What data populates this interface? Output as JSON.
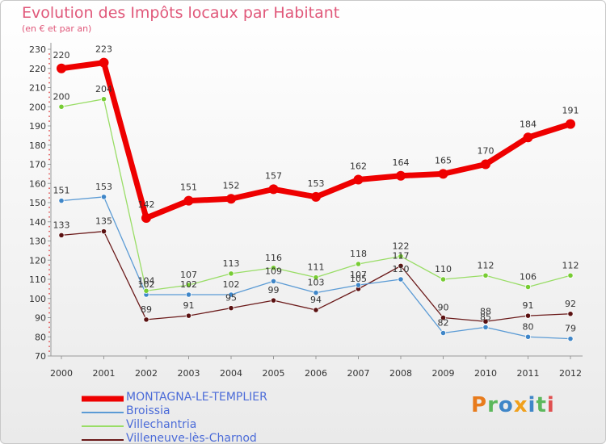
{
  "chart_data": {
    "type": "line",
    "title": "Evolution des Impôts locaux par Habitant",
    "subtitle": "(en € et par an)",
    "categories": [
      "2000",
      "2001",
      "2002",
      "2003",
      "2004",
      "2005",
      "2006",
      "2007",
      "2008",
      "2009",
      "2010",
      "2011",
      "2012"
    ],
    "yticks": [
      70,
      80,
      90,
      100,
      110,
      120,
      130,
      140,
      150,
      160,
      170,
      180,
      190,
      200,
      210,
      220,
      230
    ],
    "ylim": [
      70,
      230
    ],
    "grid": false,
    "series": [
      {
        "name": "MONTAGNA-LE-TEMPLIER",
        "color": "#ee0000",
        "point_color": "#ee0000",
        "values": [
          220,
          223,
          142,
          151,
          152,
          157,
          153,
          162,
          164,
          165,
          170,
          184,
          191
        ]
      },
      {
        "name": "Broissia",
        "color": "#5b9bd5",
        "point_color": "#3f86c8",
        "values": [
          151,
          153,
          102,
          102,
          102,
          109,
          103,
          107,
          110,
          82,
          85,
          80,
          79
        ]
      },
      {
        "name": "Villechantria",
        "color": "#99dd66",
        "point_color": "#77cc33",
        "values": [
          200,
          204,
          104,
          107,
          113,
          116,
          111,
          118,
          122,
          110,
          112,
          106,
          112
        ]
      },
      {
        "name": "Villeneuve-lès-Charnod",
        "color": "#6b1a1a",
        "point_color": "#5a1010",
        "values": [
          133,
          135,
          89,
          91,
          95,
          99,
          94,
          105,
          117,
          90,
          88,
          91,
          92
        ]
      }
    ]
  },
  "logo": {
    "letters": [
      "P",
      "r",
      "o",
      "x",
      "i",
      "t",
      "i"
    ],
    "colors": [
      "#e87b1c",
      "#5cb85c",
      "#3f86c8",
      "#f0a01c",
      "#3f86c8",
      "#5cb85c",
      "#e05050"
    ]
  }
}
